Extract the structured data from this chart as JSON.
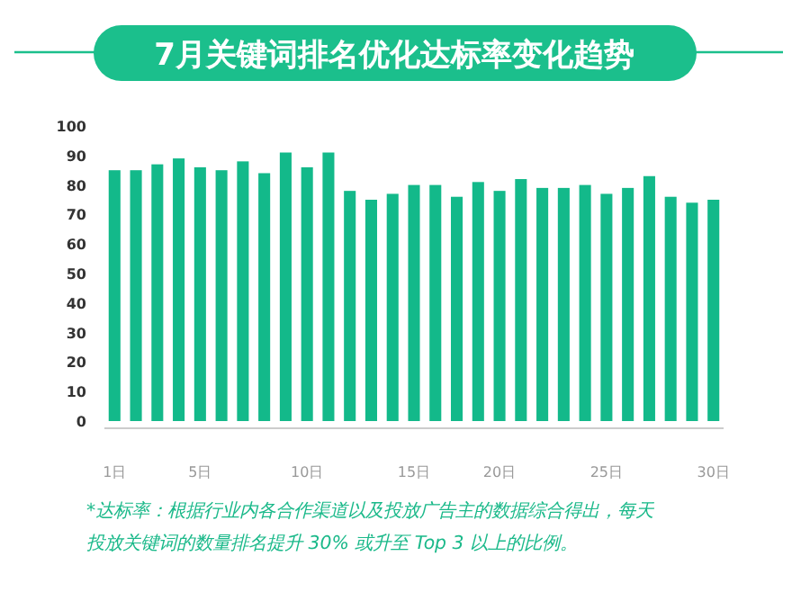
{
  "chart_data": {
    "type": "bar",
    "title": "7月关键词排名优化达标率变化趋势",
    "categories": [
      "1日",
      null,
      null,
      null,
      "5日",
      null,
      null,
      null,
      null,
      "10日",
      null,
      null,
      null,
      null,
      "15日",
      null,
      null,
      null,
      "20日",
      null,
      null,
      null,
      null,
      "25日",
      null,
      null,
      null,
      null,
      "30日"
    ],
    "values": [
      85,
      85,
      87,
      89,
      86,
      85,
      88,
      84,
      91,
      86,
      91,
      78,
      75,
      77,
      80,
      80,
      76,
      81,
      78,
      82,
      79,
      79,
      80,
      77,
      79,
      83,
      76,
      74,
      75
    ],
    "color": "#13b98a",
    "ylim": [
      0,
      100
    ],
    "yticks": [
      0,
      10,
      20,
      30,
      40,
      50,
      60,
      70,
      80,
      90,
      100
    ],
    "grid": false,
    "annotations": [
      "*达标率：根据行业内各合作渠道以及投放广告主的数据综合得出，每天",
      "投放关键词的数量排名提升 30% 或升至 Top 3 以上的比例。"
    ]
  }
}
